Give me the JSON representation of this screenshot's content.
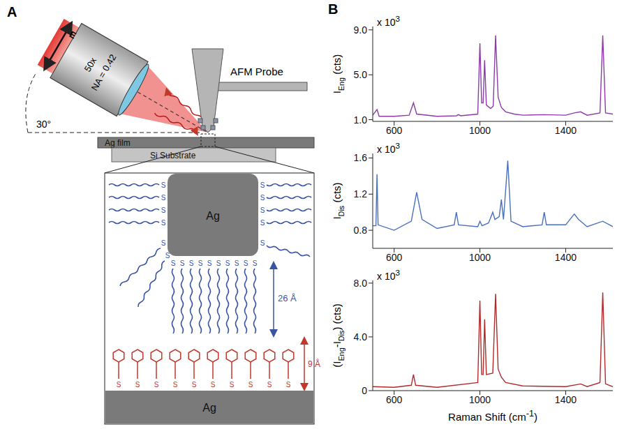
{
  "panels": [
    "A",
    "B"
  ],
  "diagram": {
    "objective": {
      "magnification": "50x",
      "aperture": "NA = 0.42"
    },
    "field_label": "E",
    "angle_label": "30°",
    "probe_label": "AFM Probe",
    "film_label": "Ag film",
    "substrate_label": "Si Substrate",
    "inset": {
      "tip_label": "Ag",
      "surface_label": "Ag",
      "sulfur_label": "S",
      "spacer_length": "26 Å",
      "molecule_length": "9 Å"
    }
  },
  "chart_data": [
    {
      "type": "line",
      "color": "#8e3ba8",
      "ylabel": [
        {
          "text": "I"
        },
        {
          "text": "Eng",
          "sub": true
        },
        {
          "text": " (cts)"
        }
      ],
      "scale_label": [
        {
          "text": "x 10"
        },
        {
          "text": "3",
          "sup": true
        }
      ],
      "xlim": [
        500,
        1620
      ],
      "xticks": [
        600,
        1000,
        1400
      ],
      "ylim": [
        0.85,
        9.3
      ],
      "yticks": [
        {
          "value": 1,
          "label": "1.0"
        },
        {
          "value": 5,
          "label": "5.0"
        },
        {
          "value": 9,
          "label": "9.0"
        }
      ],
      "x": [
        500,
        520,
        530,
        600,
        670,
        690,
        705,
        800,
        890,
        900,
        910,
        990,
        1000,
        1008,
        1015,
        1022,
        1030,
        1050,
        1062,
        1073,
        1085,
        1100,
        1120,
        1160,
        1200,
        1300,
        1400,
        1440,
        1470,
        1500,
        1560,
        1573,
        1586,
        1620
      ],
      "values": [
        1.4,
        1.9,
        1.3,
        1.3,
        1.4,
        2.5,
        1.5,
        1.3,
        1.35,
        1.45,
        1.35,
        1.5,
        7.8,
        2.5,
        2.5,
        6.3,
        2.3,
        2.0,
        2.2,
        8.5,
        3.0,
        2.1,
        1.7,
        1.5,
        1.4,
        1.45,
        1.4,
        1.6,
        1.7,
        1.4,
        1.6,
        8.5,
        1.6,
        1.5
      ]
    },
    {
      "type": "line",
      "color": "#4a6fbe",
      "ylabel": [
        {
          "text": "I"
        },
        {
          "text": "Dis",
          "sub": true
        },
        {
          "text": " (cts)"
        }
      ],
      "scale_label": [
        {
          "text": "x 10"
        },
        {
          "text": "3",
          "sup": true
        }
      ],
      "xlim": [
        500,
        1620
      ],
      "xticks": [
        600,
        1000,
        1400
      ],
      "ylim": [
        0.6,
        1.65
      ],
      "yticks": [
        0.8,
        1.2,
        1.6
      ],
      "x": [
        500,
        515,
        520,
        525,
        600,
        680,
        705,
        730,
        800,
        880,
        890,
        900,
        990,
        1000,
        1010,
        1040,
        1060,
        1070,
        1090,
        1100,
        1110,
        1130,
        1145,
        1200,
        1290,
        1300,
        1310,
        1400,
        1440,
        1460,
        1500,
        1573,
        1620
      ],
      "values": [
        0.85,
        0.85,
        1.42,
        0.86,
        0.8,
        0.9,
        1.22,
        0.92,
        0.82,
        0.86,
        1.0,
        0.86,
        0.84,
        0.9,
        0.85,
        0.88,
        1.0,
        0.92,
        0.95,
        1.14,
        0.92,
        1.57,
        0.9,
        0.84,
        0.86,
        1.0,
        0.86,
        0.86,
        0.98,
        0.92,
        0.84,
        0.9,
        0.84
      ]
    },
    {
      "type": "line",
      "color": "#b22a2a",
      "ylabel": [
        {
          "text": "(I"
        },
        {
          "text": "Eng",
          "sub": true
        },
        {
          "text": "-I"
        },
        {
          "text": "Dis",
          "sub": true
        },
        {
          "text": ") (cts)"
        }
      ],
      "scale_label": [
        {
          "text": "x 10"
        },
        {
          "text": "3",
          "sup": true
        }
      ],
      "xlabel": [
        {
          "text": "Raman Shift (cm"
        },
        {
          "text": "-1",
          "sup": true
        },
        {
          "text": ")"
        }
      ],
      "xlim": [
        500,
        1620
      ],
      "xticks": [
        600,
        1000,
        1400
      ],
      "ylim": [
        0,
        8.2
      ],
      "yticks": [
        0,
        {
          "value": 4,
          "label": "4.0"
        },
        {
          "value": 8,
          "label": "8.0"
        }
      ],
      "x": [
        500,
        600,
        680,
        690,
        700,
        800,
        990,
        1000,
        1008,
        1015,
        1022,
        1030,
        1060,
        1073,
        1085,
        1100,
        1120,
        1200,
        1400,
        1470,
        1500,
        1560,
        1573,
        1586,
        1620
      ],
      "values": [
        0.3,
        0.25,
        0.4,
        1.2,
        0.4,
        0.25,
        0.6,
        6.7,
        1.2,
        1.2,
        5.3,
        1.2,
        1.3,
        7.2,
        1.6,
        1.0,
        0.6,
        0.35,
        0.3,
        0.5,
        0.3,
        0.6,
        7.3,
        0.5,
        0.3
      ]
    }
  ]
}
